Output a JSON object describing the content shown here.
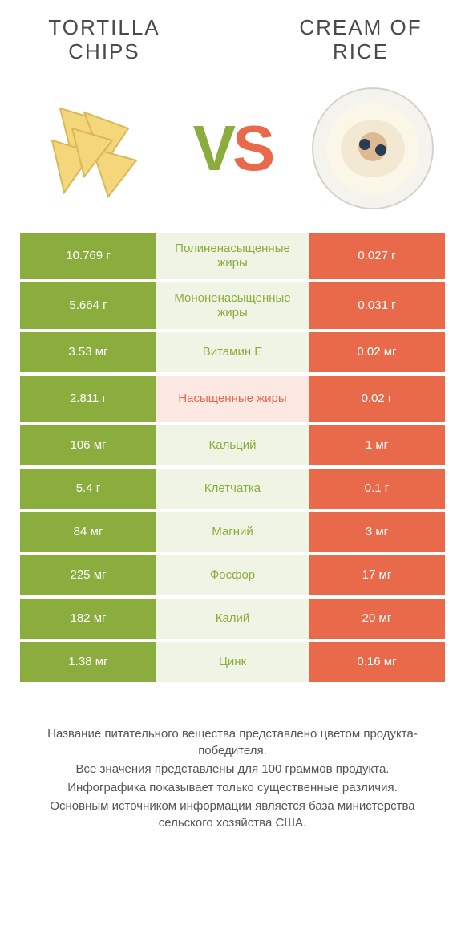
{
  "titles": {
    "left": "TORTILLA CHIPS",
    "right": "CREAM OF RICE"
  },
  "vs": {
    "v": "V",
    "s": "S"
  },
  "colors": {
    "green": "#8aad3e",
    "orange": "#e86a4a",
    "mid_green_bg": "#f0f4e4",
    "mid_orange_bg": "#fbe8e3",
    "text": "#4a4a4a",
    "caption": "#555555"
  },
  "rows": [
    {
      "left": "10.769 г",
      "label": "Полиненасыщенные жиры",
      "right": "0.027 г",
      "winner": "left",
      "tall": true
    },
    {
      "left": "5.664 г",
      "label": "Мононенасыщенные жиры",
      "right": "0.031 г",
      "winner": "left",
      "tall": true
    },
    {
      "left": "3.53 мг",
      "label": "Витамин E",
      "right": "0.02 мг",
      "winner": "left",
      "tall": false
    },
    {
      "left": "2.811 г",
      "label": "Насыщенные жиры",
      "right": "0.02 г",
      "winner": "right",
      "tall": true
    },
    {
      "left": "106 мг",
      "label": "Кальций",
      "right": "1 мг",
      "winner": "left",
      "tall": false
    },
    {
      "left": "5.4 г",
      "label": "Клетчатка",
      "right": "0.1 г",
      "winner": "left",
      "tall": false
    },
    {
      "left": "84 мг",
      "label": "Магний",
      "right": "3 мг",
      "winner": "left",
      "tall": false
    },
    {
      "left": "225 мг",
      "label": "Фосфор",
      "right": "17 мг",
      "winner": "left",
      "tall": false
    },
    {
      "left": "182 мг",
      "label": "Калий",
      "right": "20 мг",
      "winner": "left",
      "tall": false
    },
    {
      "left": "1.38 мг",
      "label": "Цинк",
      "right": "0.16 мг",
      "winner": "left",
      "tall": false
    }
  ],
  "caption": [
    "Название питательного вещества представлено цветом продукта-победителя.",
    "Все значения представлены для 100 граммов продукта.",
    "Инфографика показывает только существенные различия.",
    "Основным источником информации является база министерства сельского хозяйства США."
  ]
}
